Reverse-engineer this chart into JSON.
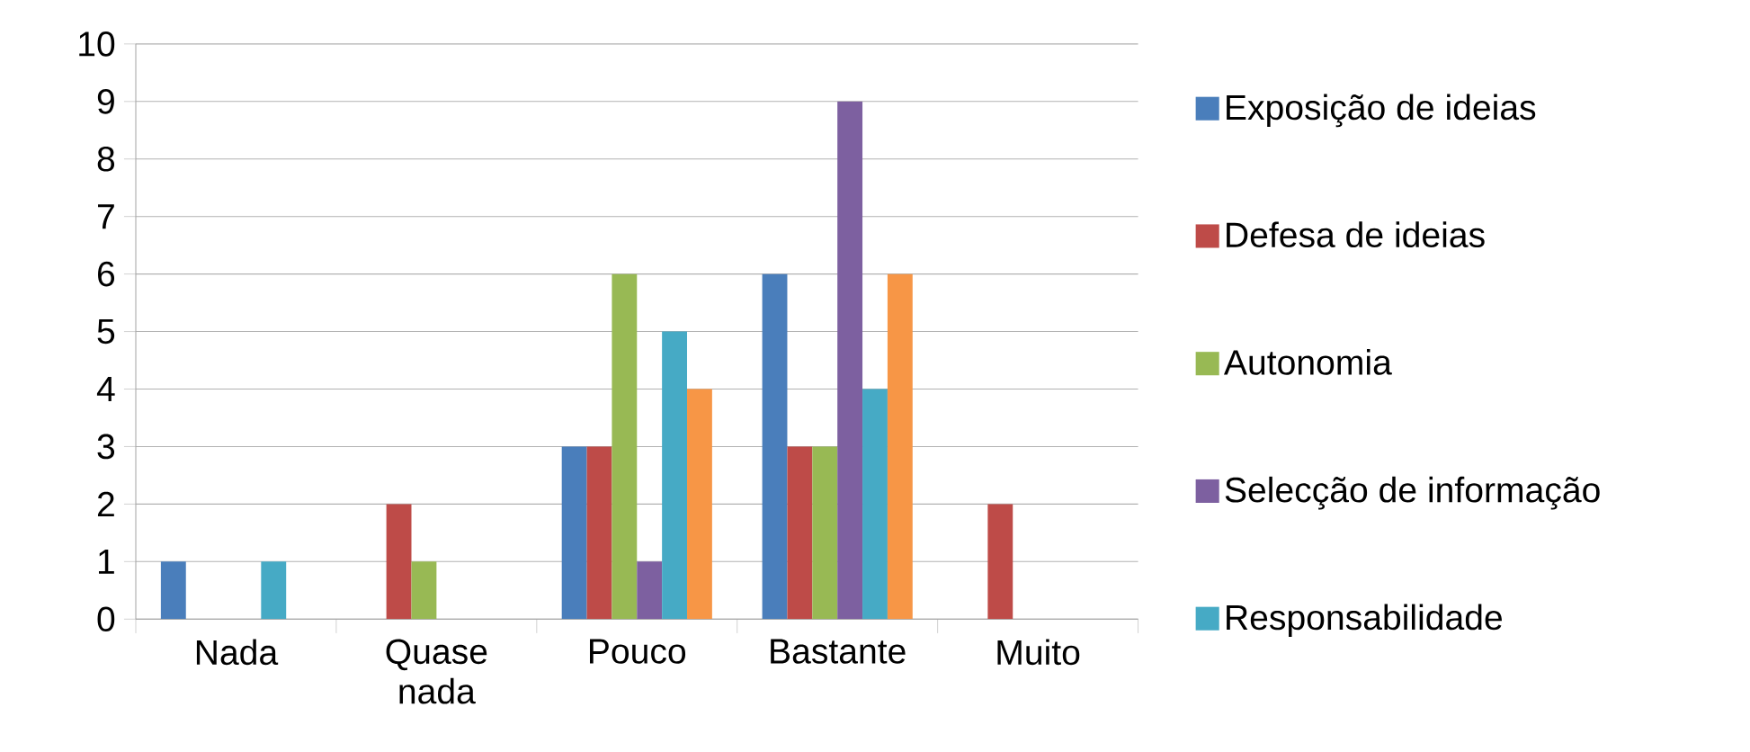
{
  "chart_data": {
    "type": "bar",
    "categories": [
      "Nada",
      "Quase nada",
      "Pouco",
      "Bastante",
      "Muito"
    ],
    "series": [
      {
        "name": "Exposição de ideias",
        "color": "#4a7ebb",
        "values": [
          1,
          0,
          3,
          6,
          0
        ]
      },
      {
        "name": "Defesa de ideias",
        "color": "#be4b48",
        "values": [
          0,
          2,
          3,
          3,
          2
        ]
      },
      {
        "name": "Autonomia",
        "color": "#98b954",
        "values": [
          0,
          1,
          6,
          3,
          0
        ]
      },
      {
        "name": "Selecção de informação",
        "color": "#7d60a0",
        "values": [
          0,
          0,
          1,
          9,
          0
        ]
      },
      {
        "name": "Responsabilidade",
        "color": "#46aac5",
        "values": [
          1,
          0,
          5,
          4,
          0
        ]
      },
      {
        "color": "#f79646",
        "values": [
          0,
          0,
          4,
          6,
          0
        ]
      }
    ],
    "ylim": [
      0,
      10
    ],
    "yticks": [
      0,
      1,
      2,
      3,
      4,
      5,
      6,
      7,
      8,
      9,
      10
    ],
    "grid": "y",
    "legend": "right"
  }
}
